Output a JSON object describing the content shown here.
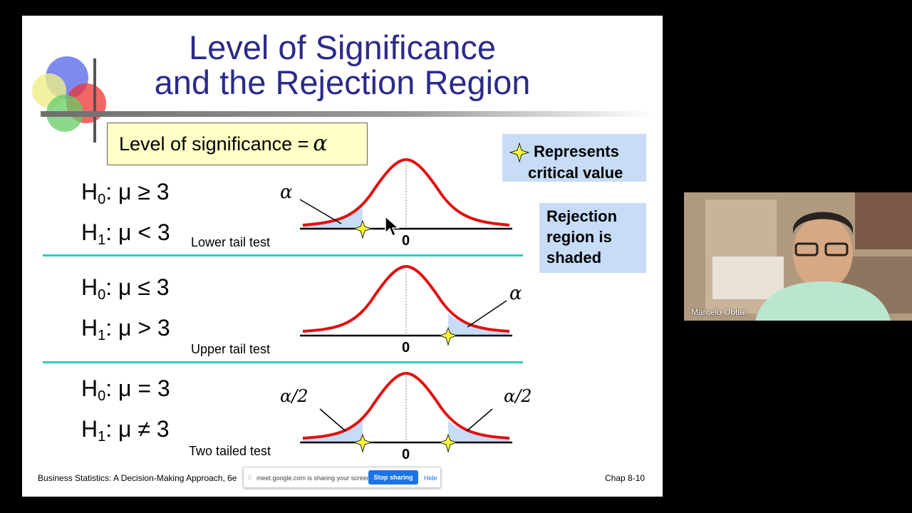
{
  "slide": {
    "title_line1": "Level of Significance",
    "title_line2": "and the Rejection Region",
    "significance_label": "Level of significance =",
    "significance_symbol": "α",
    "legend_critical_line1": "Represents",
    "legend_critical_line2": "critical value",
    "legend_rejection": [
      "Rejection",
      "region is",
      "shaded"
    ],
    "tests": [
      {
        "h0_sym": "H",
        "h0_sub": "0",
        "h0_rest": ": μ ≥ 3",
        "h1_sym": "H",
        "h1_sub": "1",
        "h1_rest": ": μ < 3",
        "label": "Lower tail test",
        "alpha_label": "α",
        "zero": "0"
      },
      {
        "h0_sym": "H",
        "h0_sub": "0",
        "h0_rest": ": μ ≤ 3",
        "h1_sym": "H",
        "h1_sub": "1",
        "h1_rest": ": μ > 3",
        "label": "Upper tail test",
        "alpha_label": "α",
        "zero": "0"
      },
      {
        "h0_sym": "H",
        "h0_sub": "0",
        "h0_rest": ": μ = 3",
        "h1_sym": "H",
        "h1_sub": "1",
        "h1_rest": ": μ ≠ 3",
        "label": "Two tailed test",
        "alpha_left": "α/2",
        "alpha_right": "α/2",
        "zero": "0"
      }
    ],
    "footer_left": "Business Statistics: A Decision-Making Approach, 6e",
    "footer_right": "Chap 8-10"
  },
  "share_bar": {
    "message": "meet.google.com is sharing your screen.",
    "stop_label": "Stop sharing",
    "hide_label": "Hide"
  },
  "participant": {
    "name": "Marcelo Obtial"
  },
  "colors": {
    "title": "#2b2b8a",
    "curve": "#e01010",
    "shade": "#c6dcf7",
    "separator": "#33ccbb",
    "legend_bg": "#c6dcf7",
    "sig_bg": "#ffffc6",
    "star": "#ffff33"
  }
}
